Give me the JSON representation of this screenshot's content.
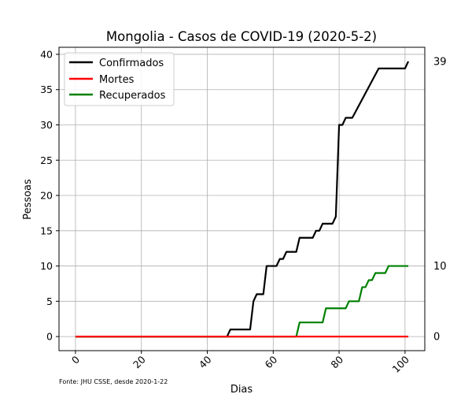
{
  "chart_data": {
    "type": "line",
    "title": "Mongolia - Casos de COVID-19 (2020-5-2)",
    "xlabel": "Dias",
    "ylabel": "Pessoas",
    "xlim": [
      -5,
      106
    ],
    "ylim": [
      -2,
      41
    ],
    "x_ticks": [
      0,
      20,
      40,
      60,
      80,
      100
    ],
    "y_ticks": [
      0,
      5,
      10,
      15,
      20,
      25,
      30,
      35,
      40
    ],
    "grid": true,
    "legend_position": "upper-left",
    "source_note": "Fonte: JHU CSSE, desde 2020-1-22",
    "series": [
      {
        "name": "Confirmados",
        "color": "#000000",
        "points": [
          [
            0,
            0
          ],
          [
            46,
            0
          ],
          [
            47,
            1
          ],
          [
            48,
            1
          ],
          [
            53,
            1
          ],
          [
            54,
            5
          ],
          [
            55,
            6
          ],
          [
            57,
            6
          ],
          [
            58,
            10
          ],
          [
            61,
            10
          ],
          [
            62,
            11
          ],
          [
            63,
            11
          ],
          [
            64,
            12
          ],
          [
            67,
            12
          ],
          [
            68,
            14
          ],
          [
            72,
            14
          ],
          [
            73,
            15
          ],
          [
            74,
            15
          ],
          [
            75,
            16
          ],
          [
            78,
            16
          ],
          [
            79,
            17
          ],
          [
            80,
            30
          ],
          [
            81,
            30
          ],
          [
            82,
            31
          ],
          [
            84,
            31
          ],
          [
            92,
            38
          ],
          [
            93,
            38
          ],
          [
            94,
            38
          ],
          [
            100,
            38
          ],
          [
            101,
            39
          ]
        ],
        "end_label": "39"
      },
      {
        "name": "Mortes",
        "color": "#ff0000",
        "points": [
          [
            0,
            0
          ],
          [
            101,
            0
          ]
        ],
        "end_label": "0"
      },
      {
        "name": "Recuperados",
        "color": "#008000",
        "points": [
          [
            0,
            0
          ],
          [
            67,
            0
          ],
          [
            68,
            2
          ],
          [
            75,
            2
          ],
          [
            76,
            4
          ],
          [
            82,
            4
          ],
          [
            83,
            5
          ],
          [
            86,
            5
          ],
          [
            87,
            7
          ],
          [
            88,
            7
          ],
          [
            89,
            8
          ],
          [
            90,
            8
          ],
          [
            91,
            9
          ],
          [
            94,
            9
          ],
          [
            95,
            10
          ],
          [
            101,
            10
          ]
        ],
        "end_label": "10"
      }
    ]
  }
}
